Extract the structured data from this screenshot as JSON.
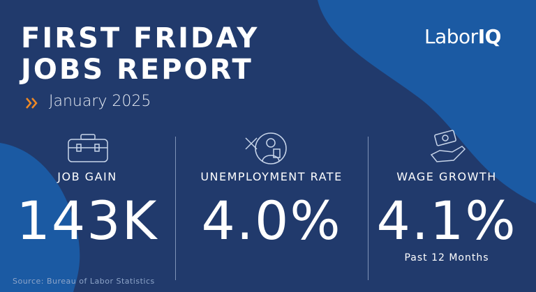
{
  "header": {
    "title": [
      "FIRST FRIDAY",
      "JOBS REPORT"
    ],
    "date": "January 2025",
    "logo": [
      "Labor",
      "IQ"
    ]
  },
  "stats": [
    {
      "label": "JOB GAIN",
      "value": "143K"
    },
    {
      "label": "UNEMPLOYMENT RATE",
      "value": "4.0%"
    },
    {
      "label": "WAGE GROWTH",
      "value": "4.1%",
      "note": "Past 12 Months"
    }
  ],
  "footer": {
    "source": "Source: Bureau of Labor Statistics"
  }
}
